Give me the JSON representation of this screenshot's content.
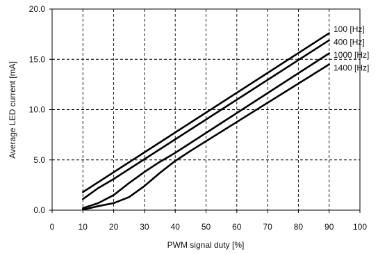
{
  "chart_data": {
    "type": "line",
    "title": "",
    "xlabel": "PWM signal duty [%]",
    "ylabel": "Average LED current [mA]",
    "xlim": [
      0,
      100
    ],
    "ylim": [
      0,
      20
    ],
    "x_ticks": [
      "0",
      "10",
      "20",
      "30",
      "40",
      "50",
      "60",
      "70",
      "80",
      "90",
      "100"
    ],
    "y_ticks": [
      "0.0",
      "5.0",
      "10.0",
      "15.0",
      "20.0"
    ],
    "grid": true,
    "grid_style": "dashed",
    "legend_placement": "right",
    "line_color": "#000000",
    "series": [
      {
        "name": "100 [Hz]",
        "x": [
          10,
          90
        ],
        "y": [
          1.8,
          17.6
        ]
      },
      {
        "name": "400 [Hz]",
        "x": [
          10,
          15,
          20,
          90
        ],
        "y": [
          1.1,
          2.2,
          3.1,
          16.9
        ]
      },
      {
        "name": "1000 [Hz]",
        "x": [
          10,
          15,
          20,
          25,
          30,
          35,
          40,
          90
        ],
        "y": [
          0.2,
          0.7,
          1.5,
          2.7,
          3.8,
          4.8,
          5.7,
          15.6
        ]
      },
      {
        "name": "1400 [Hz]",
        "x": [
          10,
          15,
          20,
          25,
          30,
          35,
          40,
          45,
          90
        ],
        "y": [
          0.05,
          0.4,
          0.7,
          1.3,
          2.4,
          3.7,
          4.9,
          5.9,
          14.5
        ]
      }
    ]
  }
}
